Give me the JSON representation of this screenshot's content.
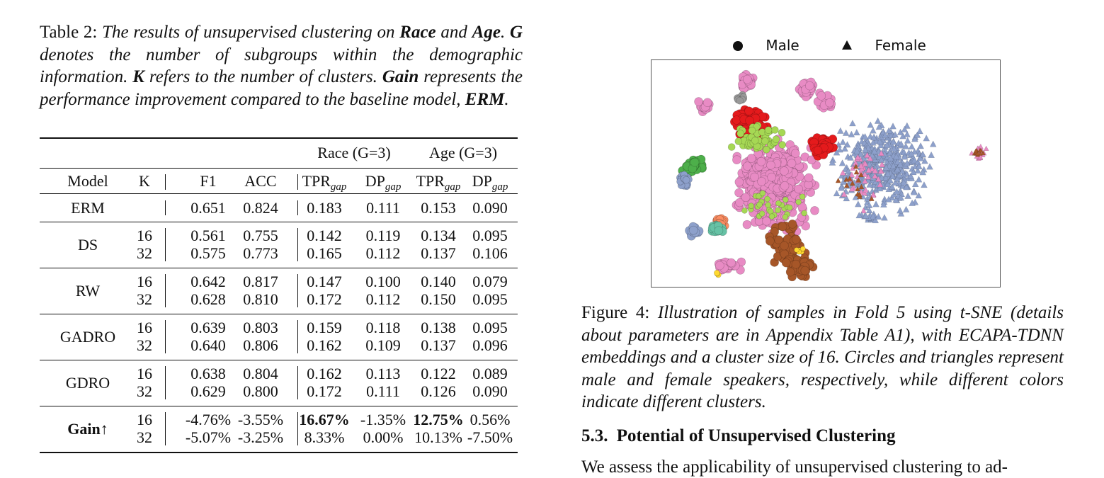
{
  "table_caption": {
    "label": "Table 2:",
    "body_parts": [
      "The results of unsupervised clustering on ",
      "Race",
      " and ",
      "Age",
      ". ",
      "G",
      " denotes the number of subgroups within the demographic information. ",
      "K",
      " refers to the number of clusters. ",
      "Gain",
      " represents the performance improvement compared to the baseline model, ",
      "ERM",
      "."
    ]
  },
  "table": {
    "group_headers": [
      "Race (G=3)",
      "Age (G=3)"
    ],
    "columns": [
      "Model",
      "K",
      "F1",
      "ACC",
      "TPR",
      "DP",
      "TPR",
      "DP"
    ],
    "column_subscript": "gap",
    "rows": [
      {
        "model": "ERM",
        "entries": [
          {
            "k": "",
            "values": [
              "0.651",
              "0.824",
              "0.183",
              "0.111",
              "0.153",
              "0.090"
            ]
          }
        ]
      },
      {
        "model": "DS",
        "entries": [
          {
            "k": "16",
            "values": [
              "0.561",
              "0.755",
              "0.142",
              "0.119",
              "0.134",
              "0.095"
            ]
          },
          {
            "k": "32",
            "values": [
              "0.575",
              "0.773",
              "0.165",
              "0.112",
              "0.137",
              "0.106"
            ]
          }
        ]
      },
      {
        "model": "RW",
        "entries": [
          {
            "k": "16",
            "values": [
              "0.642",
              "0.817",
              "0.147",
              "0.100",
              "0.140",
              "0.079"
            ]
          },
          {
            "k": "32",
            "values": [
              "0.628",
              "0.810",
              "0.172",
              "0.112",
              "0.150",
              "0.095"
            ]
          }
        ]
      },
      {
        "model": "GADRO",
        "entries": [
          {
            "k": "16",
            "values": [
              "0.639",
              "0.803",
              "0.159",
              "0.118",
              "0.138",
              "0.095"
            ]
          },
          {
            "k": "32",
            "values": [
              "0.640",
              "0.806",
              "0.162",
              "0.109",
              "0.137",
              "0.096"
            ]
          }
        ]
      },
      {
        "model": "GDRO",
        "entries": [
          {
            "k": "16",
            "values": [
              "0.638",
              "0.804",
              "0.162",
              "0.113",
              "0.122",
              "0.089"
            ]
          },
          {
            "k": "32",
            "values": [
              "0.629",
              "0.800",
              "0.172",
              "0.111",
              "0.126",
              "0.090"
            ]
          }
        ]
      },
      {
        "model": "Gain↑",
        "bold_model": true,
        "entries": [
          {
            "k": "16",
            "values": [
              "-4.76%",
              "-3.55%",
              "16.67%",
              "-1.35%",
              "12.75%",
              "0.56%"
            ],
            "bold": [
              false,
              false,
              true,
              false,
              true,
              false
            ]
          },
          {
            "k": "32",
            "values": [
              "-5.07%",
              "-3.25%",
              "8.33%",
              "0.00%",
              "10.13%",
              "-7.50%"
            ]
          }
        ]
      }
    ]
  },
  "figure": {
    "legend": [
      {
        "label": "Male",
        "marker": "circle"
      },
      {
        "label": "Female",
        "marker": "triangle"
      }
    ],
    "cluster_colors": [
      "#e88bc4",
      "#8da0cb",
      "#e41a1c",
      "#a6d854",
      "#4daf4a",
      "#a65628",
      "#fc8d62",
      "#66c2a5",
      "#999999",
      "#ffd92f"
    ]
  },
  "figure_caption": {
    "label": "Figure 4:",
    "body": "Illustration of samples in Fold 5 using t-SNE (details about parameters are in Appendix Table A1), with ECAPA-TDNN embeddings and a cluster size of 16. Circles and triangles represent male and female speakers, respectively, while different colors indicate different clusters."
  },
  "section": {
    "number": "5.3.",
    "title": "Potential of Unsupervised Clustering"
  },
  "paragraph": {
    "text": "We assess the applicability of unsupervised clustering to ad-"
  }
}
